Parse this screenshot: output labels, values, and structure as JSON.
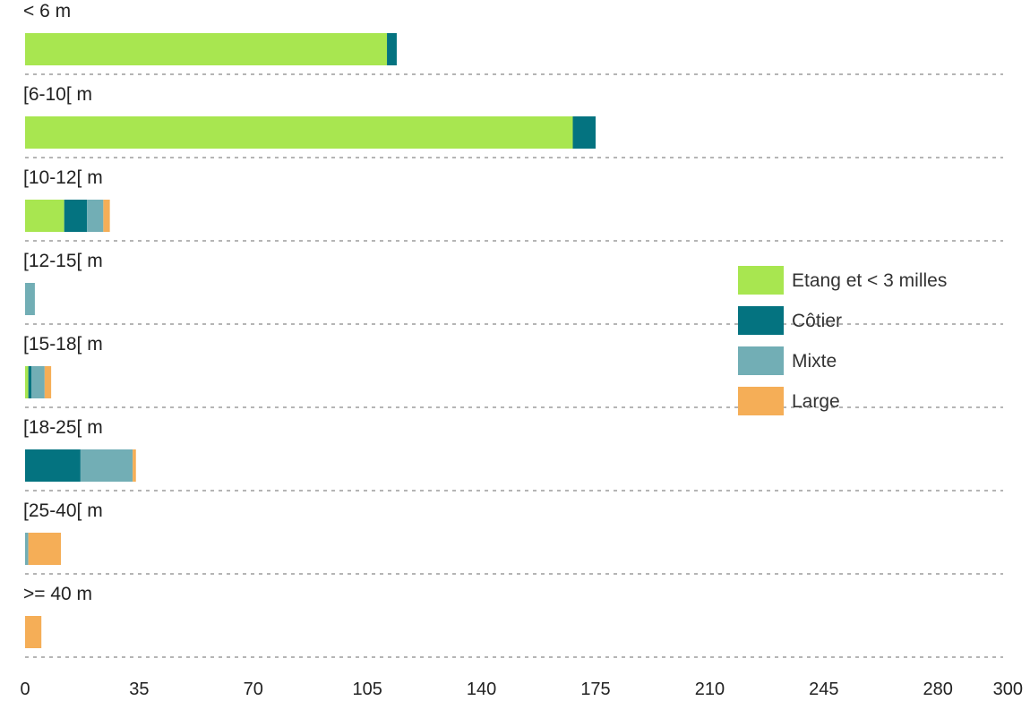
{
  "chart_data": {
    "type": "bar",
    "orientation": "horizontal",
    "stacked": true,
    "categories": [
      "< 6 m",
      "[6-10[ m",
      "[10-12[ m",
      "[12-15[ m",
      "[15-18[ m",
      "[18-25[ m",
      "[25-40[ m",
      ">= 40 m"
    ],
    "series": [
      {
        "name": "Etang et < 3 milles",
        "color": "#a8e650",
        "values": [
          111,
          168,
          12,
          0,
          1,
          0,
          0,
          0
        ]
      },
      {
        "name": "Côtier",
        "color": "#047380",
        "values": [
          3,
          7,
          7,
          0,
          1,
          17,
          0,
          0
        ]
      },
      {
        "name": "Mixte",
        "color": "#72aeb5",
        "values": [
          0,
          0,
          5,
          3,
          4,
          16,
          1,
          0
        ]
      },
      {
        "name": "Large",
        "color": "#f5ae57",
        "values": [
          0,
          0,
          2,
          0,
          2,
          1,
          10,
          5
        ]
      }
    ],
    "xticks": [
      "0",
      "35",
      "70",
      "105",
      "140",
      "175",
      "210",
      "245",
      "280",
      "300"
    ],
    "xlim": [
      0,
      300
    ],
    "grid": "dashed horizontal separators",
    "legend": "right-middle"
  }
}
